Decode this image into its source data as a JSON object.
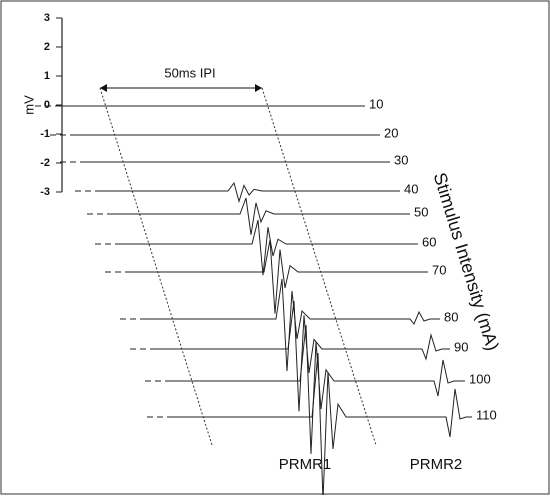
{
  "axis": {
    "label": "mV",
    "ticks": [
      "3",
      "2",
      "1",
      "0",
      "-1",
      "-2",
      "-3"
    ]
  },
  "interval_label": "50ms IPI",
  "intensity_title": "Stimulus Intensity (mA)",
  "trace_labels": [
    "10",
    "20",
    "30",
    "40",
    "50",
    "60",
    "70",
    "80",
    "90",
    "100",
    "110"
  ],
  "response_labels": [
    "PRMR1",
    "PRMR2"
  ]
}
